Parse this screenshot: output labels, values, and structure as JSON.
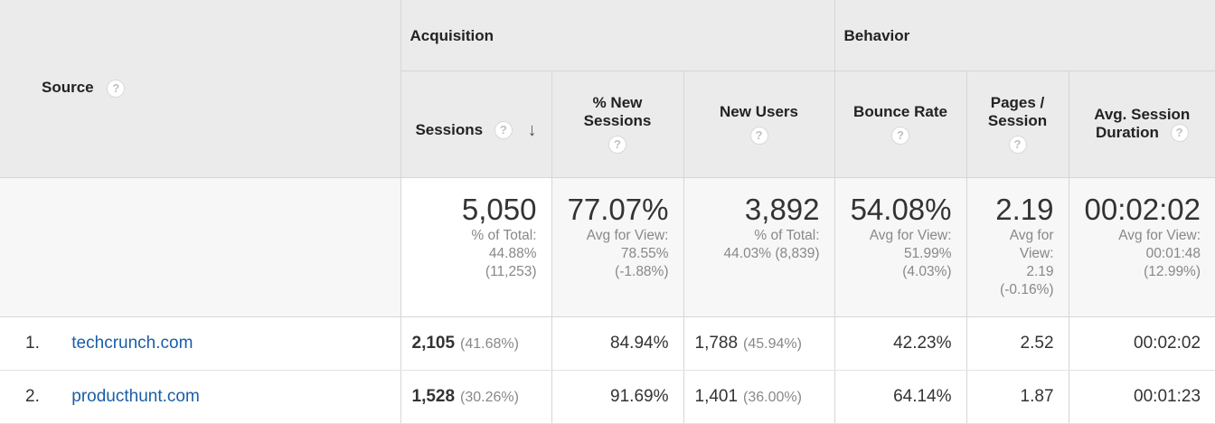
{
  "groups": {
    "acquisition": "Acquisition",
    "behavior": "Behavior"
  },
  "source_header": "Source",
  "columns": {
    "sessions": "Sessions",
    "pct_new_sessions": [
      "% New",
      "Sessions"
    ],
    "new_users": "New Users",
    "bounce_rate": "Bounce Rate",
    "pages_session": [
      "Pages /",
      "Session"
    ],
    "avg_session_duration": [
      "Avg. Session",
      "Duration"
    ]
  },
  "help_glyph": "?",
  "sort_glyph": "↓",
  "totals": {
    "sessions": {
      "value": "5,050",
      "sub": [
        "% of Total:",
        "44.88%",
        "(11,253)"
      ]
    },
    "pct_new_sessions": {
      "value": "77.07%",
      "sub": [
        "Avg for View:",
        "78.55%",
        "(-1.88%)"
      ]
    },
    "new_users": {
      "value": "3,892",
      "sub": [
        "% of Total:",
        "44.03% (8,839)"
      ]
    },
    "bounce_rate": {
      "value": "54.08%",
      "sub": [
        "Avg for View:",
        "51.99%",
        "(4.03%)"
      ]
    },
    "pages_session": {
      "value": "2.19",
      "sub": [
        "Avg for",
        "View:",
        "2.19",
        "(-0.16%)"
      ]
    },
    "avg_session_duration": {
      "value": "00:02:02",
      "sub": [
        "Avg for View:",
        "00:01:48",
        "(12.99%)"
      ]
    }
  },
  "rows": [
    {
      "index": "1.",
      "source": "techcrunch.com",
      "sessions": "2,105",
      "sessions_pct": "(41.68%)",
      "pct_new_sessions": "84.94%",
      "new_users": "1,788",
      "new_users_pct": "(45.94%)",
      "bounce_rate": "42.23%",
      "pages_session": "2.52",
      "avg_session_duration": "00:02:02"
    },
    {
      "index": "2.",
      "source": "producthunt.com",
      "sessions": "1,528",
      "sessions_pct": "(30.26%)",
      "pct_new_sessions": "91.69%",
      "new_users": "1,401",
      "new_users_pct": "(36.00%)",
      "bounce_rate": "64.14%",
      "pages_session": "1.87",
      "avg_session_duration": "00:01:23"
    }
  ]
}
